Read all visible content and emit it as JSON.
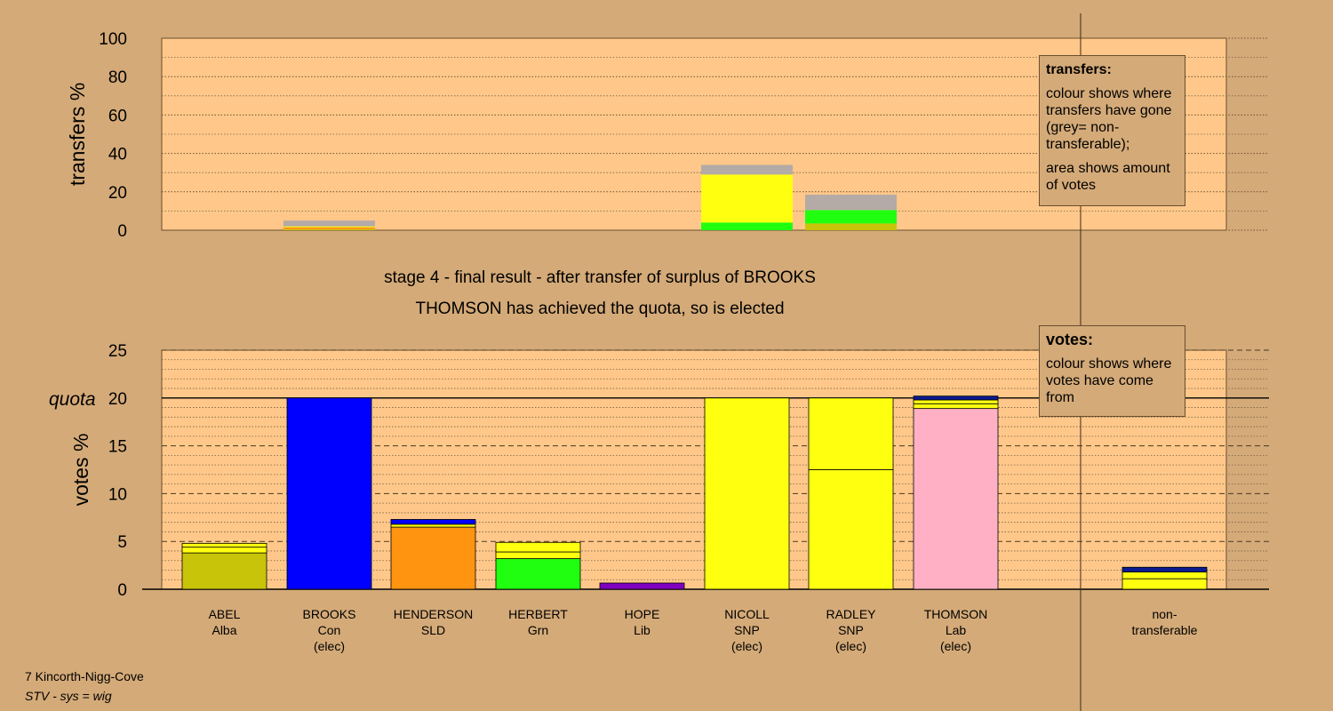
{
  "title_line1": "stage 4 - final result - after transfer of surplus of BROOKS",
  "title_line2": "THOMSON has achieved the quota, so is elected",
  "footer": {
    "constituency": "7 Kincorth-Nigg-Cove",
    "system": "STV - sys = wig"
  },
  "legend_transfers": {
    "title": "transfers:",
    "para1": "colour shows where transfers have gone (grey= non-transferable);",
    "para2": "area shows amount of votes"
  },
  "legend_votes": {
    "title": "votes:",
    "para1": "colour shows where votes have come from"
  },
  "colors": {
    "Alba": "#c8c40a",
    "Con": "#0000ff",
    "SLD": "#ff9410",
    "Grn": "#20ff10",
    "Lib": "#8000c0",
    "SNP": "#ffff10",
    "Lab": "#ffb0c4",
    "navy": "#0a1a90",
    "grey": "#b4aaa6",
    "plot_bg": "#ffc88a"
  },
  "chart_data": [
    {
      "type": "bar",
      "name": "transfers",
      "ylabel": "transfers %",
      "ylim": [
        0,
        100
      ],
      "yticks": [
        0,
        20,
        40,
        60,
        80,
        100
      ],
      "grid": true,
      "categories": [
        "ABEL",
        "BROOKS",
        "HENDERSON",
        "HERBERT",
        "HOPE",
        "NICOLL",
        "RADLEY",
        "THOMSON",
        "non-transferable"
      ],
      "stacks": [
        [],
        [
          {
            "color": "Alba",
            "value": 0.5
          },
          {
            "color": "SLD",
            "value": 1.0
          },
          {
            "color": "SNP",
            "value": 0.5
          },
          {
            "color": "grey",
            "value": 3.0
          }
        ],
        [],
        [],
        [],
        [
          {
            "color": "Grn",
            "value": 4.0
          },
          {
            "color": "SNP",
            "value": 25.0
          },
          {
            "color": "grey",
            "value": 5.0
          }
        ],
        [
          {
            "color": "Alba",
            "value": 3.5
          },
          {
            "color": "Grn",
            "value": 7.0
          },
          {
            "color": "grey",
            "value": 8.0
          }
        ],
        [],
        []
      ]
    },
    {
      "type": "bar",
      "name": "votes",
      "ylabel": "votes %",
      "ylim": [
        0,
        25
      ],
      "yticks": [
        0,
        5,
        10,
        15,
        20,
        25
      ],
      "quota": 20,
      "quota_label": "quota",
      "grid": true,
      "categories": [
        {
          "name": "ABEL",
          "party": "Alba",
          "note": ""
        },
        {
          "name": "BROOKS",
          "party": "Con",
          "note": "(elec)"
        },
        {
          "name": "HENDERSON",
          "party": "SLD",
          "note": ""
        },
        {
          "name": "HERBERT",
          "party": "Grn",
          "note": ""
        },
        {
          "name": "HOPE",
          "party": "Lib",
          "note": ""
        },
        {
          "name": "NICOLL",
          "party": "SNP",
          "note": "(elec)"
        },
        {
          "name": "RADLEY",
          "party": "SNP",
          "note": "(elec)"
        },
        {
          "name": "THOMSON",
          "party": "Lab",
          "note": "(elec)"
        },
        {
          "name": "non-",
          "party": "transferable",
          "note": ""
        }
      ],
      "stacks": [
        [
          {
            "color": "Alba",
            "value": 3.8
          },
          {
            "color": "SNP",
            "value": 0.6
          },
          {
            "color": "SNP",
            "value": 0.4
          }
        ],
        [
          {
            "color": "Con",
            "value": 20.0
          }
        ],
        [
          {
            "color": "SLD",
            "value": 6.5
          },
          {
            "color": "SNP",
            "value": 0.3
          },
          {
            "color": "Con",
            "value": 0.5
          }
        ],
        [
          {
            "color": "Grn",
            "value": 3.2
          },
          {
            "color": "SNP",
            "value": 0.7
          },
          {
            "color": "SNP",
            "value": 1.0
          }
        ],
        [
          {
            "color": "Lib",
            "value": 0.65
          }
        ],
        [
          {
            "color": "SNP",
            "value": 20.0
          }
        ],
        [
          {
            "color": "SNP",
            "value": 12.5
          },
          {
            "color": "SNP",
            "value": 7.5
          }
        ],
        [
          {
            "color": "Lab",
            "value": 18.9
          },
          {
            "color": "SNP",
            "value": 0.5
          },
          {
            "color": "SNP",
            "value": 0.4
          },
          {
            "color": "navy",
            "value": 0.4
          }
        ],
        [
          {
            "color": "SNP",
            "value": 1.1
          },
          {
            "color": "SNP",
            "value": 0.7
          },
          {
            "color": "navy",
            "value": 0.5
          }
        ]
      ]
    }
  ]
}
